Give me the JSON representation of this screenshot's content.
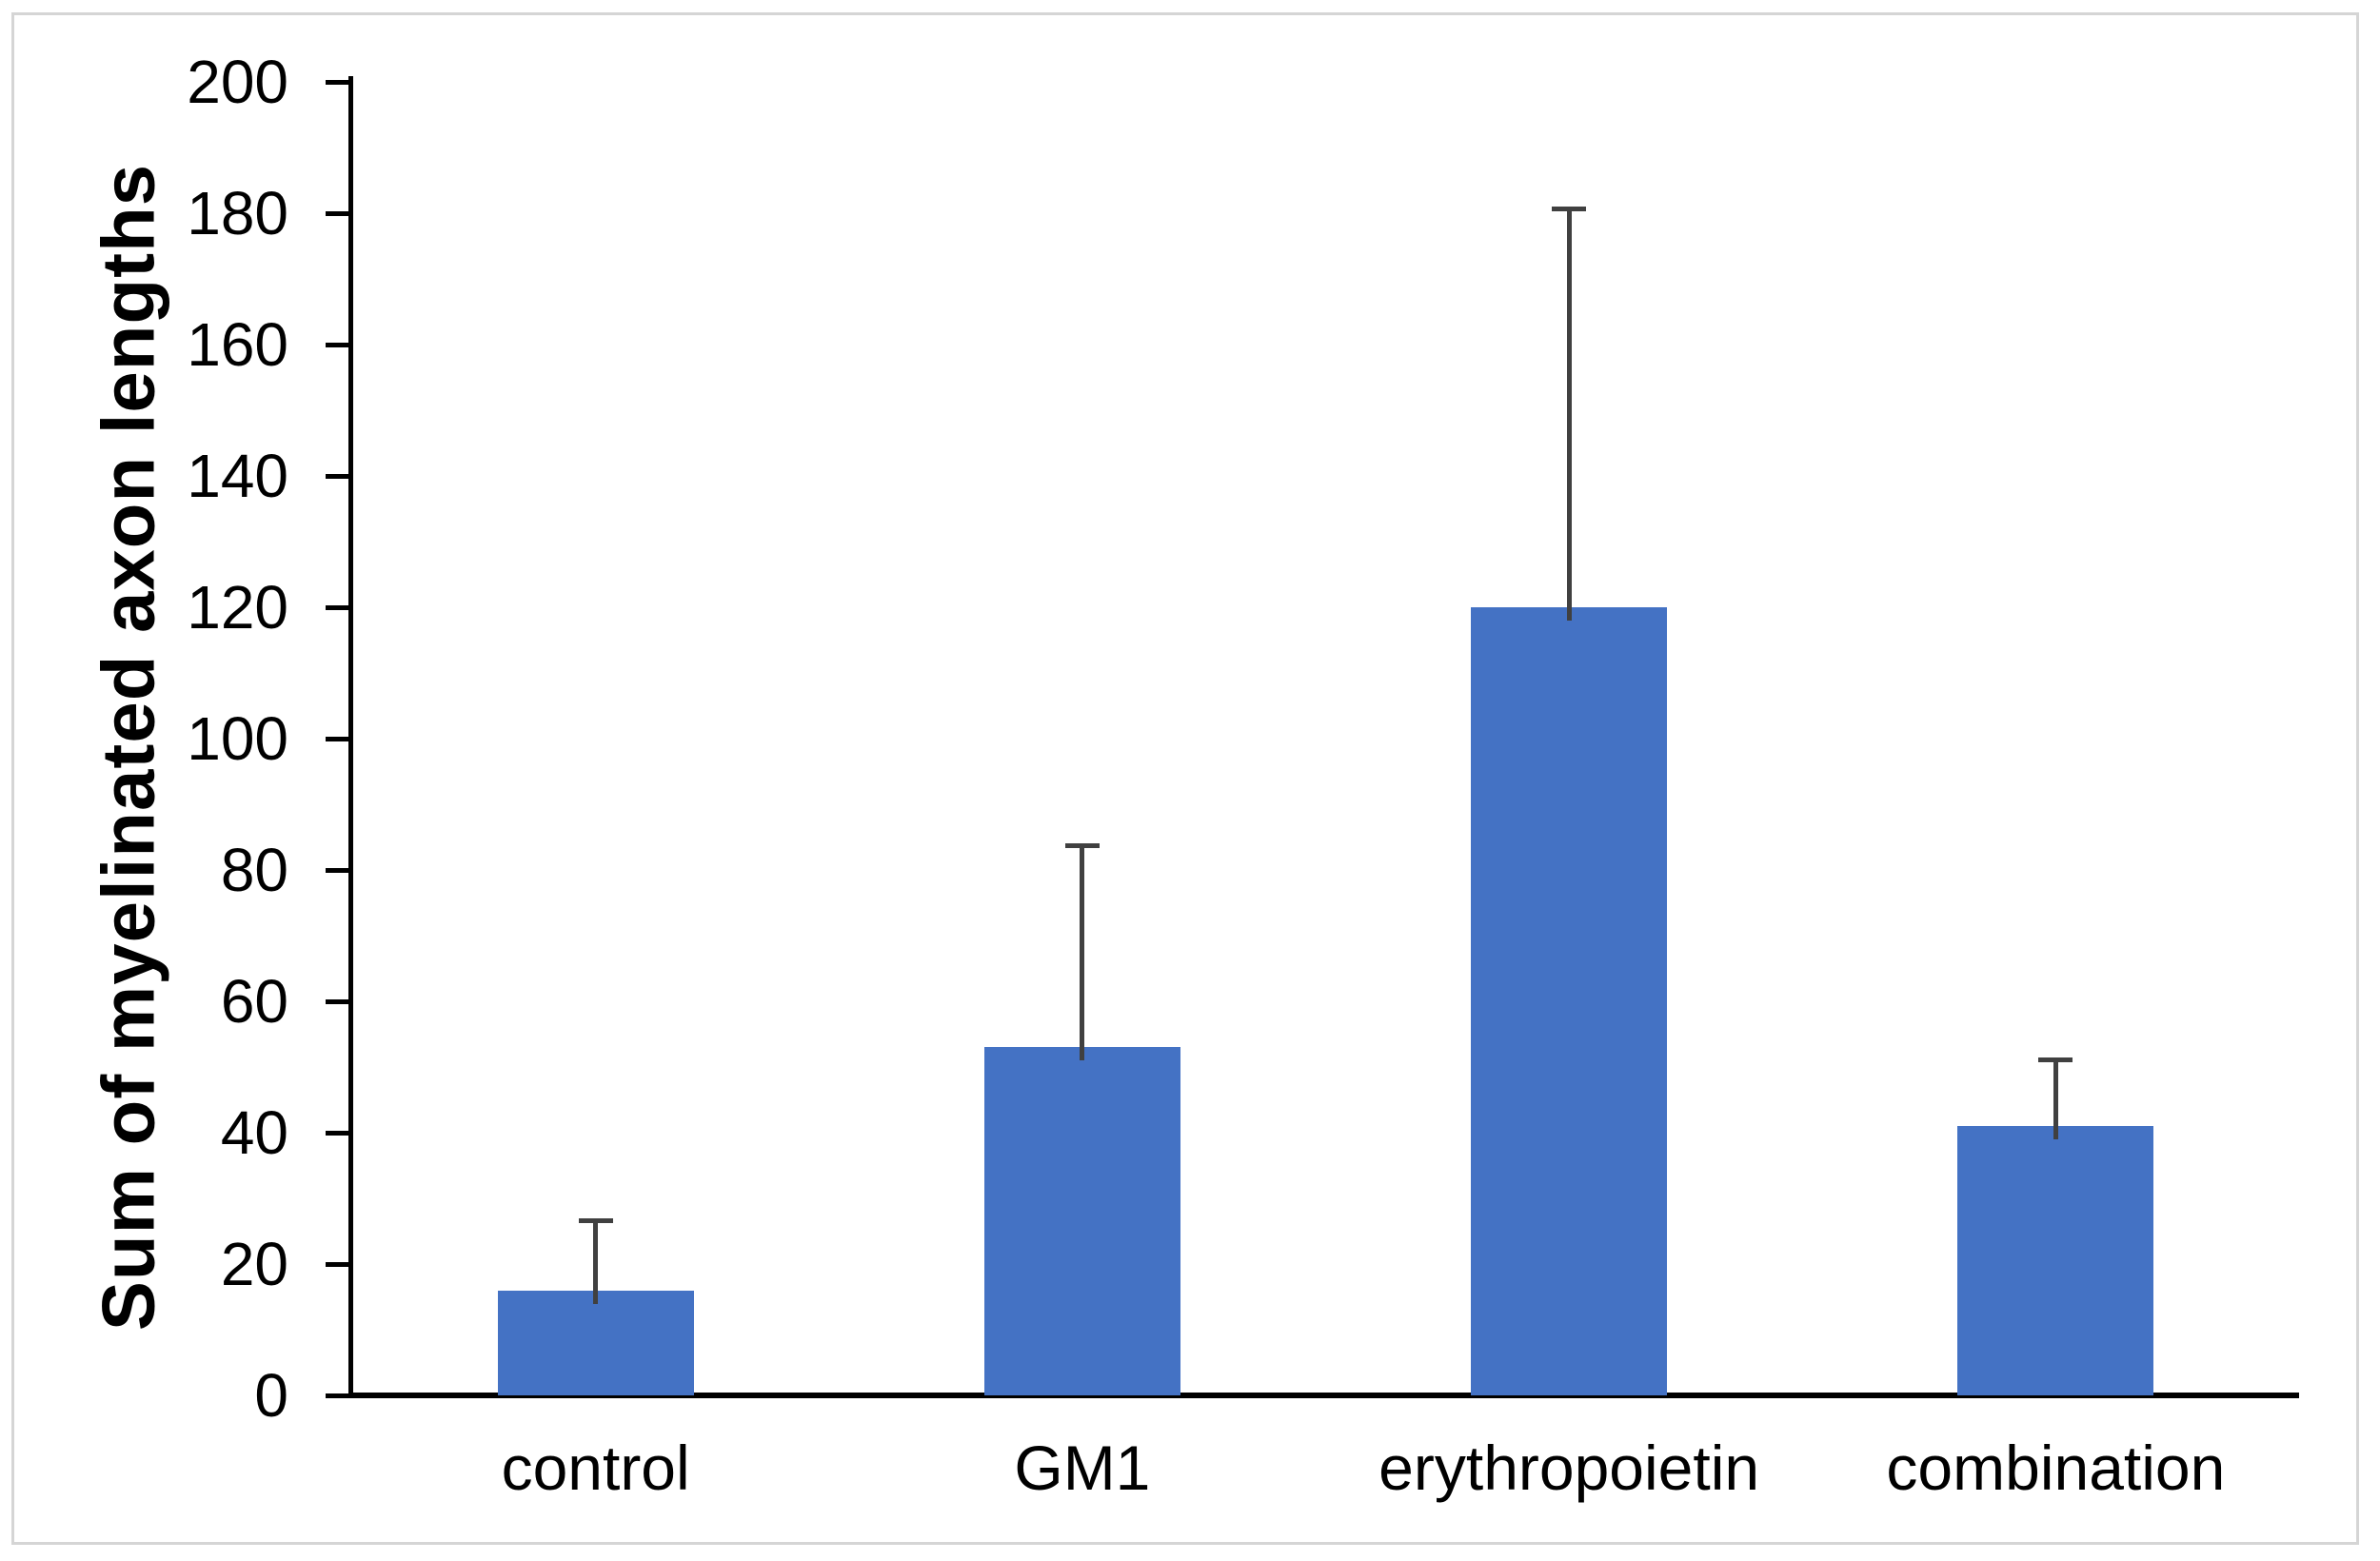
{
  "figure": {
    "background": "#ffffff",
    "border_color": "#d5d5d5"
  },
  "chart_data": {
    "type": "bar",
    "title": "",
    "ylabel": "Sum of myelinated axon lengths",
    "xlabel": "",
    "categories": [
      "control",
      "GM1",
      "erythropoietin",
      "combination"
    ],
    "values": [
      16,
      53,
      120,
      41
    ],
    "error_up": [
      11,
      31,
      61,
      10.5
    ],
    "error_tops": [
      27,
      84,
      181,
      51.5
    ],
    "yticks": [
      0,
      20,
      40,
      60,
      80,
      100,
      120,
      140,
      160,
      180,
      200
    ],
    "ylim": [
      0,
      200
    ],
    "grid": false,
    "legend": false,
    "bar_color": "#4472C4",
    "error_bar_color": "#404040",
    "axis_color": "#000000",
    "text_color": "#000000"
  }
}
